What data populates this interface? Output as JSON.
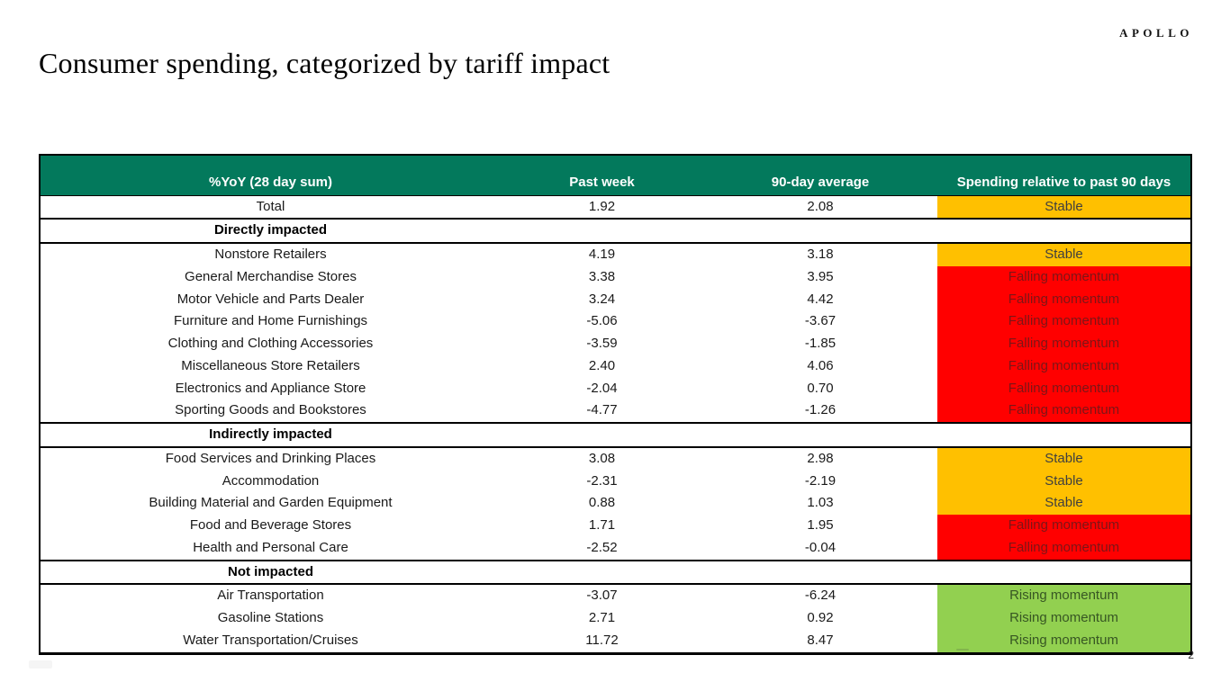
{
  "brand": {
    "logo_text": "APOLLO"
  },
  "header": {
    "title": "Consumer spending, categorized by tariff impact"
  },
  "table": {
    "columns": {
      "category": "%YoY (28 day sum)",
      "past_week": "Past week",
      "avg_90d": "90-day average",
      "status": "Spending relative to past 90 days"
    },
    "status_colors": {
      "amber": "#ffc000",
      "red": "#ff0000",
      "green": "#92d050",
      "header_green": "#03795c"
    },
    "status_labels": {
      "stable": "Stable",
      "falling": "Falling momentum",
      "rising": "Rising momentum"
    },
    "rows": [
      {
        "type": "data",
        "label": "Total",
        "past_week": "1.92",
        "avg_90d": "2.08",
        "status": "Stable",
        "status_class": "amber"
      },
      {
        "type": "section",
        "label": "Directly impacted"
      },
      {
        "type": "data",
        "label": "Nonstore Retailers",
        "past_week": "4.19",
        "avg_90d": "3.18",
        "status": "Stable",
        "status_class": "amber"
      },
      {
        "type": "data",
        "label": "General Merchandise Stores",
        "past_week": "3.38",
        "avg_90d": "3.95",
        "status": "Falling momentum",
        "status_class": "red"
      },
      {
        "type": "data",
        "label": "Motor Vehicle and Parts Dealer",
        "past_week": "3.24",
        "avg_90d": "4.42",
        "status": "Falling momentum",
        "status_class": "red"
      },
      {
        "type": "data",
        "label": "Furniture and Home Furnishings",
        "past_week": "-5.06",
        "avg_90d": "-3.67",
        "status": "Falling momentum",
        "status_class": "red"
      },
      {
        "type": "data",
        "label": "Clothing and Clothing Accessories",
        "past_week": "-3.59",
        "avg_90d": "-1.85",
        "status": "Falling momentum",
        "status_class": "red"
      },
      {
        "type": "data",
        "label": "Miscellaneous Store Retailers",
        "past_week": "2.40",
        "avg_90d": "4.06",
        "status": "Falling momentum",
        "status_class": "red"
      },
      {
        "type": "data",
        "label": "Electronics and Appliance Store",
        "past_week": "-2.04",
        "avg_90d": "0.70",
        "status": "Falling momentum",
        "status_class": "red"
      },
      {
        "type": "data",
        "label": "Sporting Goods and Bookstores",
        "past_week": "-4.77",
        "avg_90d": "-1.26",
        "status": "Falling momentum",
        "status_class": "red"
      },
      {
        "type": "section",
        "label": "Indirectly impacted"
      },
      {
        "type": "data",
        "label": "Food Services and Drinking Places",
        "past_week": "3.08",
        "avg_90d": "2.98",
        "status": "Stable",
        "status_class": "amber"
      },
      {
        "type": "data",
        "label": "Accommodation",
        "past_week": "-2.31",
        "avg_90d": "-2.19",
        "status": "Stable",
        "status_class": "amber"
      },
      {
        "type": "data",
        "label": "Building Material and Garden Equipment",
        "past_week": "0.88",
        "avg_90d": "1.03",
        "status": "Stable",
        "status_class": "amber"
      },
      {
        "type": "data",
        "label": "Food and Beverage Stores",
        "past_week": "1.71",
        "avg_90d": "1.95",
        "status": "Falling momentum",
        "status_class": "red"
      },
      {
        "type": "data",
        "label": "Health and Personal Care",
        "past_week": "-2.52",
        "avg_90d": "-0.04",
        "status": "Falling momentum",
        "status_class": "red"
      },
      {
        "type": "section",
        "label": "Not impacted"
      },
      {
        "type": "data",
        "label": "Air Transportation",
        "past_week": "-3.07",
        "avg_90d": "-6.24",
        "status": "Rising momentum",
        "status_class": "green"
      },
      {
        "type": "data",
        "label": "Gasoline Stations",
        "past_week": "2.71",
        "avg_90d": "0.92",
        "status": "Rising momentum",
        "status_class": "green"
      },
      {
        "type": "data",
        "label": "Water Transportation/Cruises",
        "past_week": "11.72",
        "avg_90d": "8.47",
        "status": "Rising momentum",
        "status_class": "green"
      }
    ]
  },
  "footer": {
    "page_number": "2"
  }
}
